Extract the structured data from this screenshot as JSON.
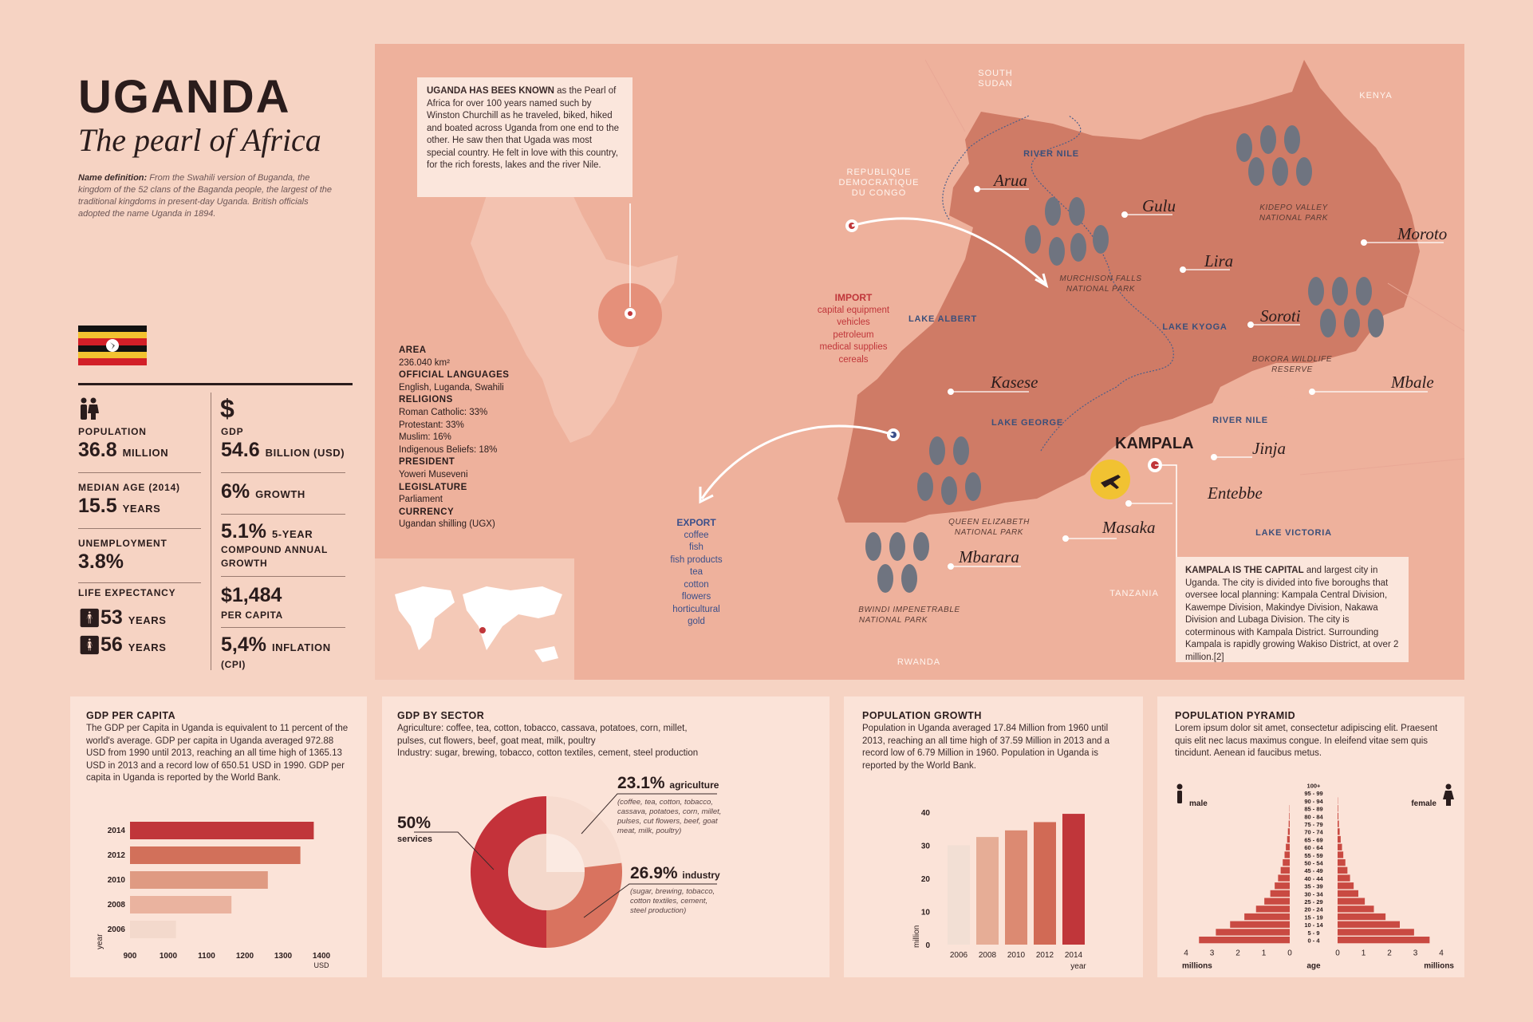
{
  "header": {
    "title": "UGANDA",
    "subtitle": "The pearl of Africa",
    "name_def_label": "Name definition:",
    "name_def_text": "From the Swahili version of Buganda, the kingdom of the 52 clans of the Baganda people, the largest of the traditional kingdoms in present-day Uganda. British officials adopted the name Uganda in 1894."
  },
  "stats": {
    "population": {
      "label": "POPULATION",
      "value": "36.8",
      "unit": "MILLION"
    },
    "median_age": {
      "label": "MEDIAN AGE (2014)",
      "value": "15.5",
      "unit": "YEARS"
    },
    "unemployment": {
      "label": "UNEMPLOYMENT",
      "value": "3.8%"
    },
    "life_expectancy": {
      "label": "LIFE EXPECTANCY",
      "male": "53",
      "female": "56",
      "unit": "YEARS"
    },
    "currency_symbol": "$",
    "gdp": {
      "label": "GDP",
      "value": "54.6",
      "unit": "BILLION (USD)"
    },
    "growth": {
      "value": "6%",
      "unit": "GROWTH"
    },
    "cagr": {
      "value": "5.1%",
      "unit": "5-YEAR",
      "line2": "COMPOUND ANNUAL",
      "line3": "GROWTH"
    },
    "per_capita": {
      "value": "$1,484",
      "unit": "PER CAPITA"
    },
    "inflation": {
      "value": "5,4%",
      "unit": "INFLATION",
      "line2": "(CPI)"
    }
  },
  "intro_callout": {
    "bold": "UGANDA HAS BEES KNOWN",
    "text": " as the Pearl of Africa for over 100 years named such by Winston Churchill as he traveled, biked, hiked and boated across Uganda from one end to the other. He saw then that Ugada was most special country. He felt in love with this country, for the rich forests, lakes and the river Nile."
  },
  "facts": {
    "area_h": "AREA",
    "area_v": "236.040 km²",
    "lang_h": "OFFICIAL LANGUAGES",
    "lang_v": "English, Luganda, Swahili",
    "rel_h": "RELIGIONS",
    "rel_1": "Roman Catholic: 33%",
    "rel_2": "Protestant: 33%",
    "rel_3": "Muslim: 16%",
    "rel_4": "Indigenous Beliefs: 18%",
    "pres_h": "PRESIDENT",
    "pres_v": "Yoweri Museveni",
    "leg_h": "LEGISLATURE",
    "leg_v": "Parliament",
    "cur_h": "CURRENCY",
    "cur_v": "Ugandan shilling (UGX)"
  },
  "trade": {
    "import_h": "IMPORT",
    "import_items": [
      "capital equipment",
      "vehicles",
      "petroleum",
      "medical supplies",
      "cereals"
    ],
    "export_h": "EXPORT",
    "export_items": [
      "coffee",
      "fish",
      "fish products",
      "tea",
      "cotton",
      "flowers",
      "horticultural",
      "gold"
    ]
  },
  "map": {
    "countries": {
      "south_sudan_1": "SOUTH",
      "south_sudan_2": "SUDAN",
      "kenya": "KENYA",
      "drc_1": "REPUBLIQUE",
      "drc_2": "DEMOCRATIQUE",
      "drc_3": "DU CONGO",
      "tanzania": "TANZANIA",
      "rwanda": "RWANDA"
    },
    "cities": {
      "arua": "Arua",
      "gulu": "Gulu",
      "lira": "Lira",
      "moroto": "Moroto",
      "soroti": "Soroti",
      "mbale": "Mbale",
      "kasese": "Kasese",
      "jinja": "Jinja",
      "entebbe": "Entebbe",
      "masaka": "Masaka",
      "mbarara": "Mbarara",
      "kampala": "KAMPALA"
    },
    "regions": {
      "river_nile_1": "RIVER NILE",
      "river_nile_2": "RIVER NILE",
      "lake_albert": "LAKE ALBERT",
      "lake_kyoga": "LAKE KYOGA",
      "lake_george": "LAKE GEORGE",
      "lake_victoria": "LAKE VICTORIA"
    },
    "parks": {
      "kidepo_1": "KIDEPO VALLEY",
      "kidepo_2": "NATIONAL PARK",
      "murchison_1": "MURCHISON FALLS",
      "murchison_2": "NATIONAL PARK",
      "bokora_1": "BOKORA WILDLIFE",
      "bokora_2": "RESERVE",
      "queen_1": "QUEEN ELIZABETH",
      "queen_2": "NATIONAL PARK",
      "bwindi_1": "BWINDI IMPENETRABLE",
      "bwindi_2": "NATIONAL PARK"
    }
  },
  "capital_callout": {
    "bold": "KAMPALA IS THE CAPITAL",
    "text": " and largest city in Uganda. The city is divided into five boroughs that oversee local planning: Kampala Central Division, Kawempe Division, Makindye Division, Nakawa Division and Lubaga Division. The city is coterminous with Kampala District. Surrounding Kampala is rapidly growing Wakiso District, at over 2 million.[2]"
  },
  "panels": {
    "gdp_per_capita": {
      "title": "GDP PER CAPITA",
      "text": "The GDP per Capita in Uganda is equivalent to 11 percent of the world's average. GDP per capita in Uganda averaged 972.88 USD from 1990 until 2013, reaching an all time high of 1365.13 USD in 2013 and a record low of 650.51 USD in 1990. GDP per capita in Uganda is reported by the World Bank.",
      "ylabel": "year",
      "xunit": "USD"
    },
    "gdp_by_sector": {
      "title": "GDP BY SECTOR",
      "text1": "Agriculture: coffee, tea, cotton, tobacco, cassava, potatoes, corn, millet, pulses, cut flowers, beef, goat meat, milk, poultry",
      "text2": "Industry: sugar, brewing, tobacco, cotton textiles, cement, steel production",
      "services_val": "50%",
      "services_lbl": "services",
      "agri_val": "23.1%",
      "agri_lbl": "agriculture",
      "agri_note": "(coffee, tea, cotton, tobacco, cassava, potatoes, corn, millet, pulses, cut flowers, beef, goat meat, milk, poultry)",
      "ind_val": "26.9%",
      "ind_lbl": "industry",
      "ind_note": "(sugar, brewing, tobacco, cotton textiles, cement, steel production)"
    },
    "population_growth": {
      "title": "POPULATION GROWTH",
      "text": "Population in Uganda averaged 17.84 Million from 1960 until 2013, reaching an all time high of 37.59 Million in 2013 and a record low of 6.79 Million in 1960. Population in Uganda is reported by the World Bank.",
      "ylabel": "million",
      "xlabel": "year"
    },
    "population_pyramid": {
      "title": "POPULATION PYRAMID",
      "text": "Lorem ipsum dolor sit amet, consectetur adipiscing elit. Praesent quis elit nec lacus maximus congue. In eleifend vitae sem quis tincidunt. Aenean id faucibus metus.",
      "male": "male",
      "female": "female",
      "age": "age",
      "xunit_left": "millions",
      "xunit_right": "millions"
    }
  },
  "chart_data": [
    {
      "type": "bar",
      "orientation": "horizontal",
      "title": "GDP PER CAPITA",
      "categories": [
        "2014",
        "2012",
        "2010",
        "2008",
        "2006"
      ],
      "values": [
        1380,
        1345,
        1260,
        1165,
        1020
      ],
      "xlim": [
        900,
        1400
      ],
      "xticks": [
        "900",
        "1000",
        "1100",
        "1200",
        "1300",
        "1400"
      ],
      "xunit": "USD",
      "ylabel": "year",
      "colors": [
        "#c0363a",
        "#d2705a",
        "#df9a82",
        "#eab39f",
        "#f3d9cc"
      ]
    },
    {
      "type": "pie",
      "title": "GDP BY SECTOR",
      "labels": [
        "services",
        "agriculture",
        "industry"
      ],
      "values": [
        50,
        23.1,
        26.9
      ],
      "colors": [
        "#c4323a",
        "#f7dcd0",
        "#d9735f"
      ]
    },
    {
      "type": "bar",
      "title": "POPULATION GROWTH",
      "categories": [
        "2006",
        "2008",
        "2010",
        "2012",
        "2014"
      ],
      "values": [
        30,
        32.5,
        34.5,
        37,
        39.5
      ],
      "ylim": [
        0,
        40
      ],
      "yticks": [
        "0",
        "10",
        "20",
        "30",
        "40"
      ],
      "ylabel": "million",
      "xlabel": "year",
      "colors": [
        "#f2dfd4",
        "#e6ad96",
        "#dc8a72",
        "#d16a55",
        "#c0363a"
      ]
    },
    {
      "type": "bar",
      "title": "POPULATION PYRAMID",
      "age_groups": [
        "100+",
        "95 - 99",
        "90 - 94",
        "85 - 89",
        "80 - 84",
        "75 - 79",
        "70 - 74",
        "65 - 69",
        "60 - 64",
        "55 - 59",
        "50 - 54",
        "45 - 49",
        "40 - 44",
        "35 - 39",
        "30 - 34",
        "25 - 29",
        "20 - 24",
        "15 - 19",
        "10 - 14",
        "5 - 9",
        "0 - 4"
      ],
      "male": [
        0.0,
        0.0,
        0.0,
        0.01,
        0.02,
        0.04,
        0.07,
        0.1,
        0.15,
        0.2,
        0.27,
        0.35,
        0.45,
        0.58,
        0.75,
        0.98,
        1.3,
        1.75,
        2.3,
        2.85,
        3.5
      ],
      "female": [
        0.0,
        0.0,
        0.01,
        0.02,
        0.03,
        0.05,
        0.08,
        0.12,
        0.17,
        0.22,
        0.3,
        0.38,
        0.48,
        0.62,
        0.8,
        1.05,
        1.4,
        1.85,
        2.4,
        2.95,
        3.55
      ],
      "xlim": [
        0,
        4
      ],
      "left_ticks": [
        "4",
        "3",
        "2",
        "1",
        "0"
      ],
      "right_ticks": [
        "0",
        "1",
        "2",
        "3",
        "4"
      ],
      "xunit": "millions",
      "color": "#c94a42"
    }
  ]
}
